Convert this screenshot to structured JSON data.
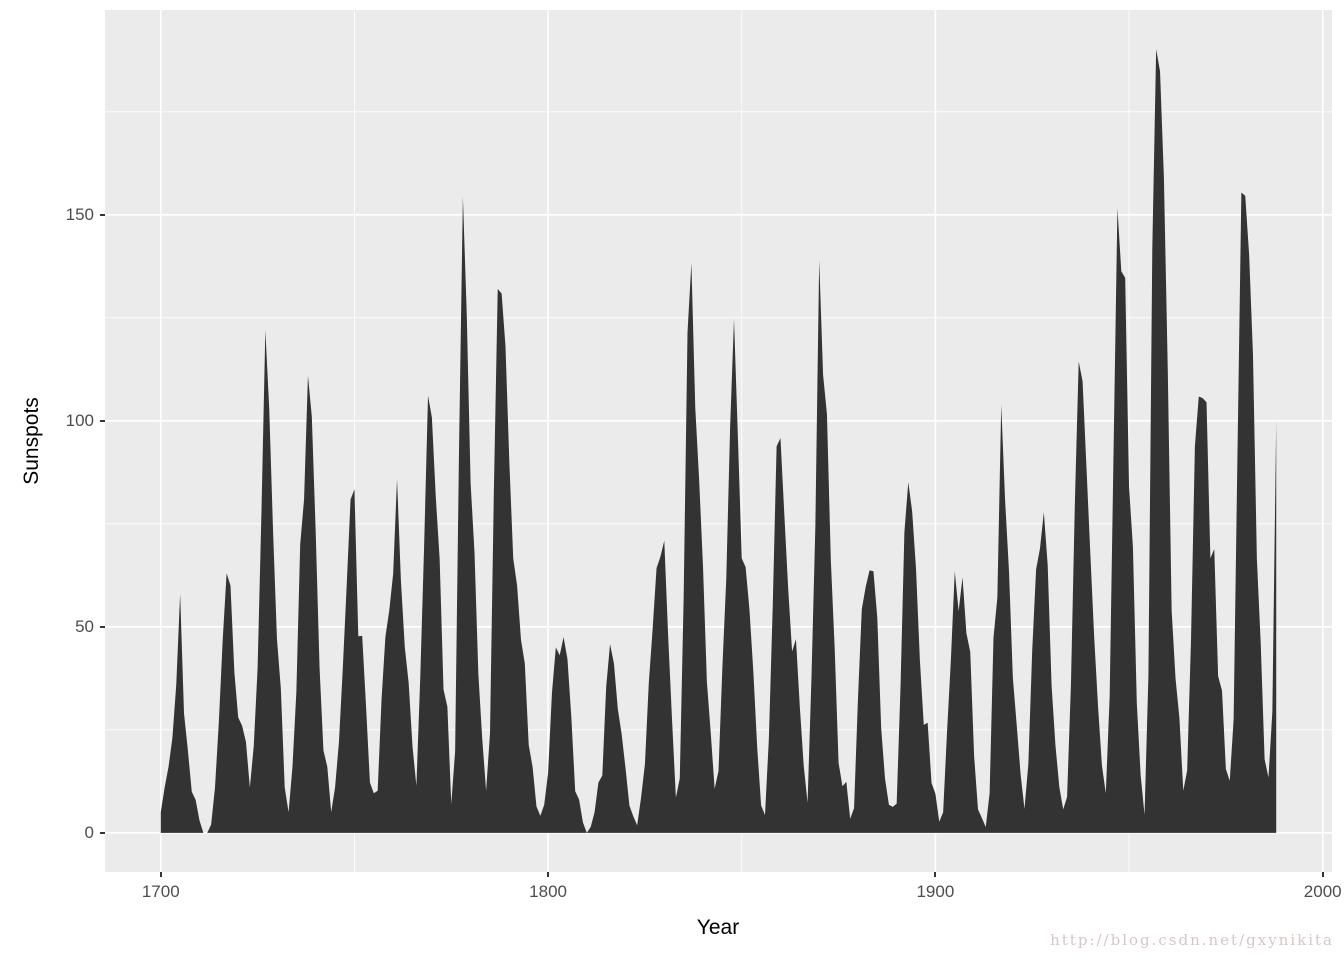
{
  "watermark": "http://blog.csdn.net/gxynikita",
  "colors": {
    "panel_background": "#EBEBEB",
    "grid_major": "#FFFFFF",
    "grid_minor": "#FFFFFF",
    "area_fill": "#333333",
    "tick_mark": "#333333",
    "tick_label": "#4D4D4D",
    "axis_title": "#000000",
    "watermark": "#D8C6C6"
  },
  "chart_data": {
    "type": "area",
    "title": "",
    "xlabel": "Year",
    "ylabel": "Sunspots",
    "legend": "none",
    "grid": "on",
    "x_ticks": [
      1700,
      1800,
      1900,
      2000
    ],
    "x_minor_ticks": [
      1750,
      1850,
      1950
    ],
    "y_ticks": [
      0,
      50,
      100,
      150
    ],
    "y_minor_ticks": [
      25,
      75,
      125,
      175
    ],
    "xlim": [
      1685.6,
      2002.4
    ],
    "ylim": [
      -9.51,
      199.71
    ],
    "x_start": 1700,
    "x_step": 1,
    "x_end": 1988,
    "series_name": "Sunspots",
    "values": [
      5,
      11,
      16,
      23,
      36,
      58,
      29,
      20,
      10,
      8,
      3,
      0,
      0,
      2,
      11,
      27,
      47,
      63,
      60,
      39,
      28,
      26,
      22,
      11,
      21,
      40,
      78,
      122,
      103,
      73,
      47,
      35,
      11,
      5,
      16,
      34,
      70,
      81,
      111,
      101,
      73,
      40,
      20,
      16,
      5,
      11,
      22,
      40,
      60,
      80.9,
      83.4,
      47.7,
      47.8,
      30.7,
      12.2,
      9.6,
      10.2,
      32.4,
      47.6,
      54,
      62.9,
      85.9,
      61.2,
      45.1,
      36.4,
      20.9,
      11.4,
      37.8,
      69.8,
      106.1,
      100.8,
      81.6,
      66.5,
      34.8,
      30.6,
      7,
      19.8,
      92.5,
      154.4,
      125.9,
      84.8,
      68.1,
      38.5,
      22.8,
      10.2,
      24.1,
      82.9,
      132,
      130.9,
      118.1,
      89.9,
      66.6,
      60,
      46.9,
      41,
      21.3,
      16,
      6.4,
      4.1,
      6.8,
      14.5,
      34,
      45,
      43.1,
      47.5,
      42.2,
      28.1,
      10.1,
      8.1,
      2.5,
      0,
      1.4,
      5,
      12.2,
      13.9,
      35.4,
      45.8,
      41.1,
      30.1,
      23.9,
      15.6,
      6.6,
      4,
      1.8,
      8.5,
      16.6,
      36.3,
      49.6,
      64.2,
      67,
      70.9,
      47.8,
      27.5,
      8.5,
      13.2,
      56.9,
      121.5,
      138.3,
      103.2,
      85.7,
      64.6,
      36.7,
      24.2,
      10.7,
      15,
      40.1,
      61.5,
      98.5,
      124.7,
      96.3,
      66.6,
      64.5,
      54.1,
      39,
      20.6,
      6.7,
      4.3,
      22.7,
      54.8,
      93.8,
      95.8,
      77.2,
      59.1,
      44,
      47,
      30.5,
      16.3,
      7.3,
      37.6,
      74,
      139,
      111.2,
      101.6,
      66.2,
      44.7,
      17,
      11.3,
      12.4,
      3.4,
      6,
      32.3,
      54.3,
      59.7,
      63.7,
      63.5,
      52.2,
      25.4,
      13.1,
      6.8,
      6.3,
      7.1,
      35.6,
      73,
      85.1,
      78,
      64,
      41.8,
      26.2,
      26.7,
      12.1,
      9.5,
      2.7,
      5,
      24.4,
      42,
      63.5,
      53.8,
      62,
      48.5,
      43.9,
      18.6,
      5.7,
      3.6,
      1.4,
      9.6,
      47.4,
      57.1,
      103.9,
      80.6,
      63.6,
      37.6,
      26.1,
      14.2,
      5.8,
      16.7,
      44.3,
      63.9,
      69,
      77.8,
      64.9,
      35.7,
      21.2,
      11.1,
      5.7,
      8.7,
      36.1,
      79.7,
      114.4,
      109.6,
      88.8,
      67.8,
      47.5,
      30.6,
      16.3,
      9.6,
      33.2,
      92.6,
      151.6,
      136.3,
      134.7,
      83.9,
      69.4,
      31.5,
      13.9,
      4.4,
      38,
      141.7,
      190.2,
      184.8,
      159,
      112.3,
      53.9,
      37.5,
      27.9,
      10.2,
      15.1,
      47,
      93.8,
      105.9,
      105.5,
      104.5,
      66.6,
      68.9,
      38,
      34.5,
      15.5,
      12.6,
      27.5,
      92.5,
      155.4,
      154.6,
      140.4,
      115.9,
      66.6,
      45.9,
      17.9,
      13.4,
      29.4,
      100.2
    ]
  }
}
